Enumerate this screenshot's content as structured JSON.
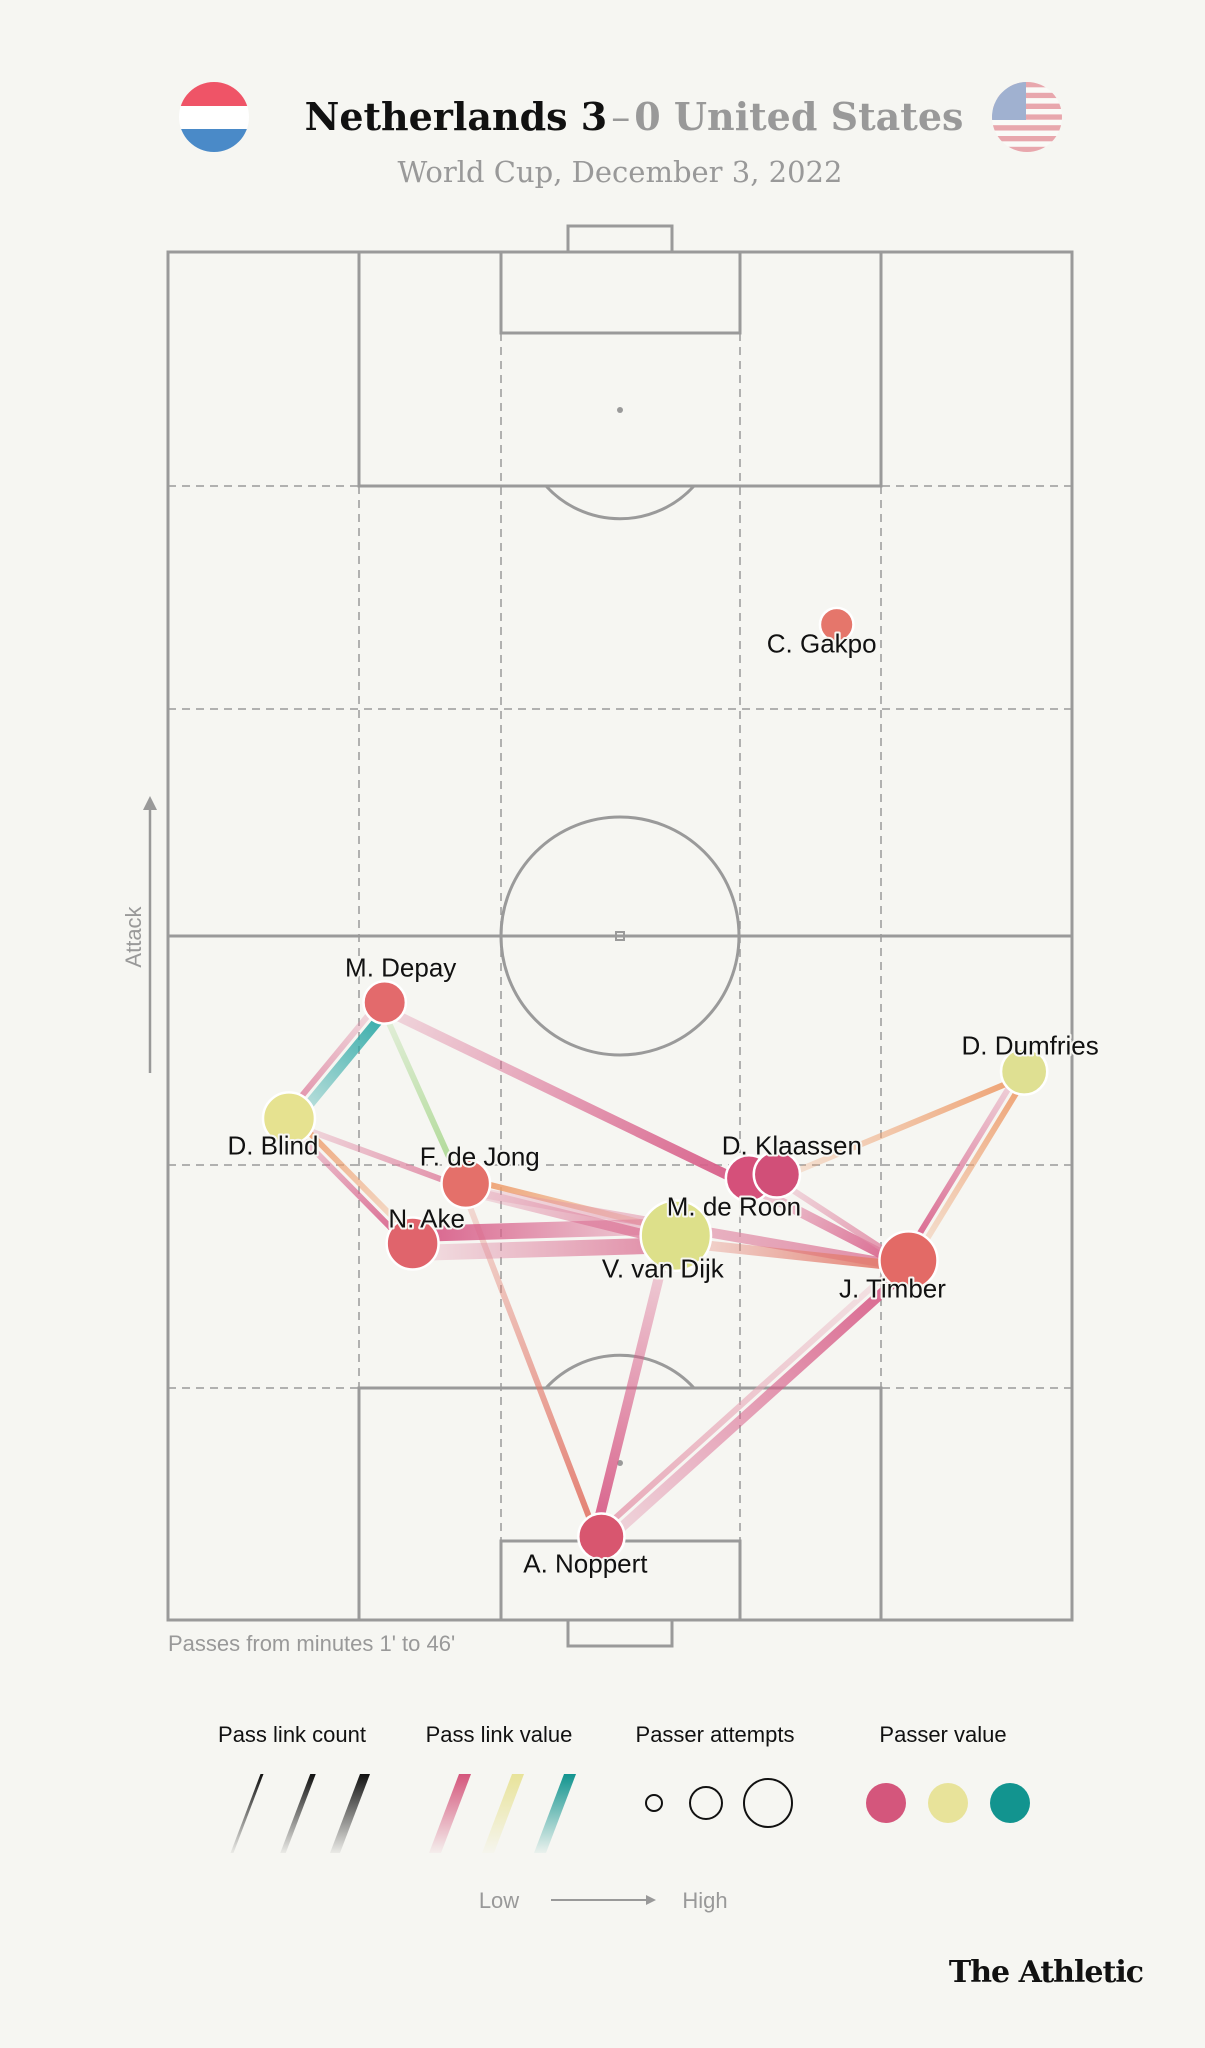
{
  "header": {
    "home_team": "Netherlands",
    "home_score": "3",
    "separator": "–",
    "away_score": "0",
    "away_team": "United States",
    "subtitle": "World Cup, December 3, 2022",
    "home_flag": "netherlands-flag-icon",
    "away_flag": "usa-flag-icon"
  },
  "attack_label": "Attack",
  "footnote": "Passes from minutes 1' to 46'",
  "legend": {
    "count_title": "Pass link count",
    "value_title": "Pass link value",
    "attempts_title": "Passer attempts",
    "passer_value_title": "Passer value",
    "low": "Low",
    "high": "High",
    "colors": {
      "low": "#d4567c",
      "mid": "#e8e39a",
      "high": "#12948f"
    }
  },
  "brand": "The Athletic",
  "chart_data": {
    "type": "network",
    "pitch": {
      "width_m": 68,
      "length_m": 105,
      "attack_direction": "up"
    },
    "players": [
      {
        "name": "C. Gakpo",
        "x": 50.3,
        "y": 76.4,
        "attempts": 10,
        "color": "#e5766b"
      },
      {
        "name": "M. Depay",
        "x": 16.3,
        "y": 47.4,
        "attempts": 16,
        "color": "#e36a6c"
      },
      {
        "name": "D. Blind",
        "x": 9.1,
        "y": 38.5,
        "attempts": 24,
        "color": "#e6e290"
      },
      {
        "name": "F. de Jong",
        "x": 22.4,
        "y": 33.5,
        "attempts": 21,
        "color": "#e4706a"
      },
      {
        "name": "N. Ake",
        "x": 18.4,
        "y": 28.9,
        "attempts": 24,
        "color": "#e0646c"
      },
      {
        "name": "V. van Dijk",
        "x": 38.2,
        "y": 29.5,
        "attempts": 44,
        "color": "#dde08a"
      },
      {
        "name": "M. de Roon",
        "x": 43.7,
        "y": 33.9,
        "attempts": 19,
        "color": "#d5507a"
      },
      {
        "name": "D. Klaassen",
        "x": 45.8,
        "y": 34.2,
        "attempts": 19,
        "color": "#d14f78"
      },
      {
        "name": "D. Dumfries",
        "x": 64.4,
        "y": 42.1,
        "attempts": 19,
        "color": "#dfe092"
      },
      {
        "name": "J. Timber",
        "x": 55.7,
        "y": 27.6,
        "attempts": 30,
        "color": "#e36a66"
      },
      {
        "name": "A. Noppert",
        "x": 32.6,
        "y": 6.4,
        "attempts": 19,
        "color": "#d8566f"
      }
    ],
    "links": [
      {
        "from": "D. Blind",
        "to": "M. Depay",
        "count": 2,
        "color": "#2aa7a5"
      },
      {
        "from": "M. Depay",
        "to": "D. Blind",
        "count": 1,
        "color": "#e08aa5"
      },
      {
        "from": "M. Depay",
        "to": "F. de Jong",
        "count": 1,
        "color": "#a9d78f"
      },
      {
        "from": "M. Depay",
        "to": "M. de Roon",
        "count": 2,
        "color": "#d8608a"
      },
      {
        "from": "D. Blind",
        "to": "F. de Jong",
        "count": 1,
        "color": "#e08aa5"
      },
      {
        "from": "D. Blind",
        "to": "N. Ake",
        "count": 1,
        "color": "#d8608a"
      },
      {
        "from": "N. Ake",
        "to": "D. Blind",
        "count": 1,
        "color": "#eea070"
      },
      {
        "from": "F. de Jong",
        "to": "V. van Dijk",
        "count": 2,
        "color": "#e08aa5"
      },
      {
        "from": "V. van Dijk",
        "to": "F. de Jong",
        "count": 1,
        "color": "#eea070"
      },
      {
        "from": "F. de Jong",
        "to": "J. Timber",
        "count": 2,
        "color": "#e08aa5"
      },
      {
        "from": "F. de Jong",
        "to": "A. Noppert",
        "count": 1,
        "color": "#e37d6f"
      },
      {
        "from": "N. Ake",
        "to": "V. van Dijk",
        "count": 3,
        "color": "#e08aa5"
      },
      {
        "from": "V. van Dijk",
        "to": "N. Ake",
        "count": 3,
        "color": "#d8608a"
      },
      {
        "from": "V. van Dijk",
        "to": "J. Timber",
        "count": 2,
        "color": "#e37d6f"
      },
      {
        "from": "M. de Roon",
        "to": "J. Timber",
        "count": 2,
        "color": "#d8608a"
      },
      {
        "from": "D. Klaassen",
        "to": "J. Timber",
        "count": 1,
        "color": "#e08aa5"
      },
      {
        "from": "D. Klaassen",
        "to": "D. Dumfries",
        "count": 1,
        "color": "#eea070"
      },
      {
        "from": "J. Timber",
        "to": "D. Dumfries",
        "count": 1,
        "color": "#eea070"
      },
      {
        "from": "D. Dumfries",
        "to": "J. Timber",
        "count": 1,
        "color": "#d8608a"
      },
      {
        "from": "J. Timber",
        "to": "A. Noppert",
        "count": 1,
        "color": "#e8a8b8"
      },
      {
        "from": "A. Noppert",
        "to": "J. Timber",
        "count": 2,
        "color": "#d8608a"
      },
      {
        "from": "V. van Dijk",
        "to": "A. Noppert",
        "count": 2,
        "color": "#d8608a"
      }
    ]
  }
}
